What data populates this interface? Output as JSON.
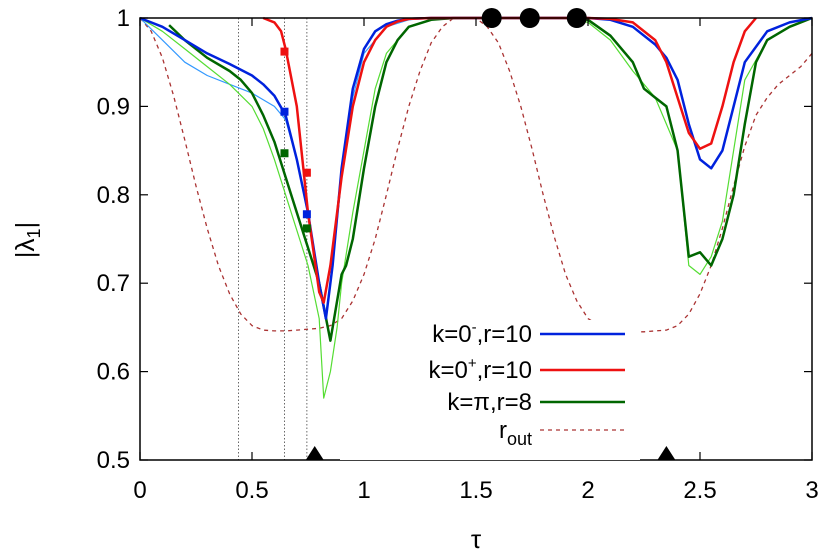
{
  "chart_data": {
    "type": "line",
    "xlabel": "τ",
    "ylabel": "|λ1|",
    "ylabel_main": "|λ",
    "ylabel_sub": "1",
    "ylabel_end": "|",
    "xlim": [
      0,
      3
    ],
    "ylim": [
      0.5,
      1.0
    ],
    "xticks": [
      0,
      0.5,
      1,
      1.5,
      2,
      2.5,
      3
    ],
    "xtick_labels": [
      "0",
      "0.5",
      "1",
      "1.5",
      "2",
      "2.5",
      "3"
    ],
    "yticks": [
      0.5,
      0.6,
      0.7,
      0.8,
      0.9,
      1.0
    ],
    "ytick_labels": [
      "0.5",
      "0.6",
      "0.7",
      "0.8",
      "0.9",
      "1"
    ],
    "grid": false,
    "legend_position": "right-bottom",
    "vertical_dotted_lines_x": [
      0.44,
      0.645,
      0.745
    ],
    "series": [
      {
        "name": "k=0-,r=10",
        "label_parts": [
          "k=0",
          "-",
          ",r=10"
        ],
        "color": "#0022dd",
        "style": "solid",
        "x": [
          0,
          0.1,
          0.2,
          0.3,
          0.4,
          0.5,
          0.55,
          0.6,
          0.65,
          0.7,
          0.75,
          0.8,
          0.83,
          0.86,
          0.9,
          0.95,
          1.0,
          1.05,
          1.1,
          1.15,
          1.2,
          1.3,
          1.4,
          1.5,
          1.9,
          2.0,
          2.1,
          2.2,
          2.3,
          2.35,
          2.4,
          2.45,
          2.5,
          2.55,
          2.6,
          2.65,
          2.7,
          2.8,
          2.9,
          3.0
        ],
        "y": [
          1.0,
          0.99,
          0.975,
          0.96,
          0.948,
          0.935,
          0.925,
          0.912,
          0.89,
          0.84,
          0.78,
          0.7,
          0.66,
          0.72,
          0.83,
          0.92,
          0.965,
          0.985,
          0.993,
          0.997,
          0.999,
          1.0,
          1.0,
          1.0,
          1.0,
          1.0,
          0.998,
          0.99,
          0.97,
          0.955,
          0.93,
          0.88,
          0.84,
          0.83,
          0.85,
          0.9,
          0.95,
          0.985,
          0.995,
          1.0
        ]
      },
      {
        "name": "k=0+,r=10",
        "label_parts": [
          "k=0",
          "+",
          ",r=10"
        ],
        "color": "#ee1111",
        "style": "solid",
        "x": [
          0.55,
          0.6,
          0.63,
          0.65,
          0.7,
          0.75,
          0.8,
          0.82,
          0.85,
          0.9,
          0.95,
          1.0,
          1.05,
          1.1,
          1.15,
          1.2,
          1.3,
          2.0,
          2.1,
          2.2,
          2.3,
          2.35,
          2.4,
          2.45,
          2.5,
          2.55,
          2.6,
          2.65,
          2.7,
          2.75
        ],
        "y": [
          1.0,
          0.995,
          0.985,
          0.965,
          0.9,
          0.78,
          0.69,
          0.678,
          0.72,
          0.82,
          0.9,
          0.95,
          0.975,
          0.99,
          0.996,
          0.999,
          1.0,
          1.0,
          0.999,
          0.995,
          0.975,
          0.95,
          0.91,
          0.87,
          0.852,
          0.858,
          0.9,
          0.95,
          0.985,
          1.0
        ]
      },
      {
        "name": "k=π,r=8",
        "label_parts": [
          "k=π,r=8",
          "",
          ""
        ],
        "color": "#006600",
        "style": "solid",
        "x": [
          0.13,
          0.2,
          0.3,
          0.4,
          0.45,
          0.5,
          0.55,
          0.6,
          0.65,
          0.7,
          0.75,
          0.8,
          0.85,
          0.88,
          0.9,
          0.92,
          0.95,
          1.0,
          1.05,
          1.1,
          1.15,
          1.2,
          1.3,
          1.4,
          1.5,
          1.9,
          2.0,
          2.1,
          2.2,
          2.25,
          2.3,
          2.35,
          2.4,
          2.45,
          2.5,
          2.55,
          2.6,
          2.65,
          2.7,
          2.75,
          2.8,
          2.9,
          3.0
        ],
        "y": [
          0.992,
          0.975,
          0.955,
          0.94,
          0.93,
          0.915,
          0.89,
          0.86,
          0.82,
          0.78,
          0.74,
          0.7,
          0.635,
          0.68,
          0.71,
          0.72,
          0.75,
          0.83,
          0.9,
          0.95,
          0.975,
          0.99,
          0.998,
          1.0,
          1.0,
          1.0,
          0.998,
          0.98,
          0.95,
          0.92,
          0.91,
          0.9,
          0.85,
          0.73,
          0.735,
          0.72,
          0.75,
          0.8,
          0.88,
          0.95,
          0.975,
          0.99,
          1.0
        ]
      },
      {
        "name": "",
        "color": "#55dd33",
        "style": "thin",
        "x": [
          0,
          0.1,
          0.2,
          0.3,
          0.4,
          0.5,
          0.55,
          0.6,
          0.65,
          0.7,
          0.75,
          0.8,
          0.82,
          0.85,
          0.88,
          0.9,
          0.95,
          1.0,
          1.05,
          1.1,
          1.2,
          1.3,
          1.5,
          1.9,
          2.0,
          2.1,
          2.2,
          2.3,
          2.4,
          2.45,
          2.5,
          2.55,
          2.6,
          2.65,
          2.7,
          2.8,
          2.9,
          3.0
        ],
        "y": [
          1.0,
          0.985,
          0.965,
          0.945,
          0.925,
          0.9,
          0.875,
          0.84,
          0.8,
          0.76,
          0.72,
          0.66,
          0.57,
          0.6,
          0.65,
          0.7,
          0.78,
          0.85,
          0.92,
          0.96,
          0.99,
          0.998,
          1.0,
          1.0,
          0.995,
          0.975,
          0.94,
          0.91,
          0.85,
          0.72,
          0.71,
          0.73,
          0.77,
          0.85,
          0.93,
          0.975,
          0.99,
          1.0
        ]
      },
      {
        "name": "",
        "color": "#3399ff",
        "style": "thin",
        "x": [
          0,
          0.1,
          0.2,
          0.3,
          0.4,
          0.5,
          0.6,
          0.65,
          0.7,
          0.75,
          0.8,
          0.83,
          0.86,
          0.9,
          0.95,
          1.0,
          1.1,
          1.2,
          1.3,
          1.5
        ],
        "y": [
          1.0,
          0.975,
          0.95,
          0.935,
          0.925,
          0.915,
          0.9,
          0.885,
          0.84,
          0.78,
          0.7,
          0.665,
          0.72,
          0.82,
          0.91,
          0.96,
          0.99,
          0.998,
          1.0,
          1.0
        ]
      },
      {
        "name": "rout",
        "label_parts": [
          "r",
          "out",
          ""
        ],
        "color": "#aa3333",
        "style": "dashed",
        "x": [
          0,
          0.05,
          0.1,
          0.15,
          0.2,
          0.25,
          0.3,
          0.35,
          0.4,
          0.45,
          0.5,
          0.55,
          0.6,
          0.65,
          0.7,
          0.75,
          0.8,
          0.85,
          0.9,
          0.95,
          1.0,
          1.05,
          1.1,
          1.15,
          1.2,
          1.25,
          1.3,
          1.35,
          1.4,
          1.45,
          1.5,
          1.55,
          1.6,
          1.65,
          1.7,
          1.75,
          1.8,
          1.85,
          1.9,
          1.95,
          2.0,
          2.05,
          2.1,
          2.15,
          2.2,
          2.25,
          2.3,
          2.35,
          2.4,
          2.45,
          2.5,
          2.55,
          2.6,
          2.65,
          2.7,
          2.75,
          2.8,
          2.85,
          2.9,
          2.95,
          3.0
        ],
        "y": [
          1.0,
          0.985,
          0.955,
          0.912,
          0.862,
          0.81,
          0.762,
          0.72,
          0.688,
          0.665,
          0.652,
          0.647,
          0.646,
          0.646,
          0.647,
          0.648,
          0.649,
          0.652,
          0.66,
          0.68,
          0.71,
          0.75,
          0.8,
          0.852,
          0.9,
          0.94,
          0.972,
          0.99,
          1.0,
          1.0,
          1.0,
          0.99,
          0.972,
          0.94,
          0.9,
          0.852,
          0.8,
          0.752,
          0.71,
          0.68,
          0.66,
          0.652,
          0.648,
          0.646,
          0.645,
          0.645,
          0.646,
          0.647,
          0.652,
          0.665,
          0.688,
          0.72,
          0.762,
          0.81,
          0.855,
          0.89,
          0.91,
          0.925,
          0.935,
          0.945,
          0.96
        ]
      }
    ],
    "square_markers": [
      {
        "x": 0.645,
        "y": 0.962,
        "color": "#ee1111"
      },
      {
        "x": 0.645,
        "y": 0.894,
        "color": "#0022dd"
      },
      {
        "x": 0.645,
        "y": 0.847,
        "color": "#006600"
      },
      {
        "x": 0.745,
        "y": 0.825,
        "color": "#ee1111"
      },
      {
        "x": 0.745,
        "y": 0.778,
        "color": "#0022dd"
      },
      {
        "x": 0.745,
        "y": 0.762,
        "color": "#006600"
      }
    ],
    "circle_markers": [
      {
        "x": 1.57,
        "y": 1.0
      },
      {
        "x": 1.74,
        "y": 1.0
      },
      {
        "x": 1.95,
        "y": 1.0
      }
    ],
    "triangle_markers": [
      {
        "x": 0.78,
        "y": 0.5
      },
      {
        "x": 2.35,
        "y": 0.5
      }
    ]
  }
}
